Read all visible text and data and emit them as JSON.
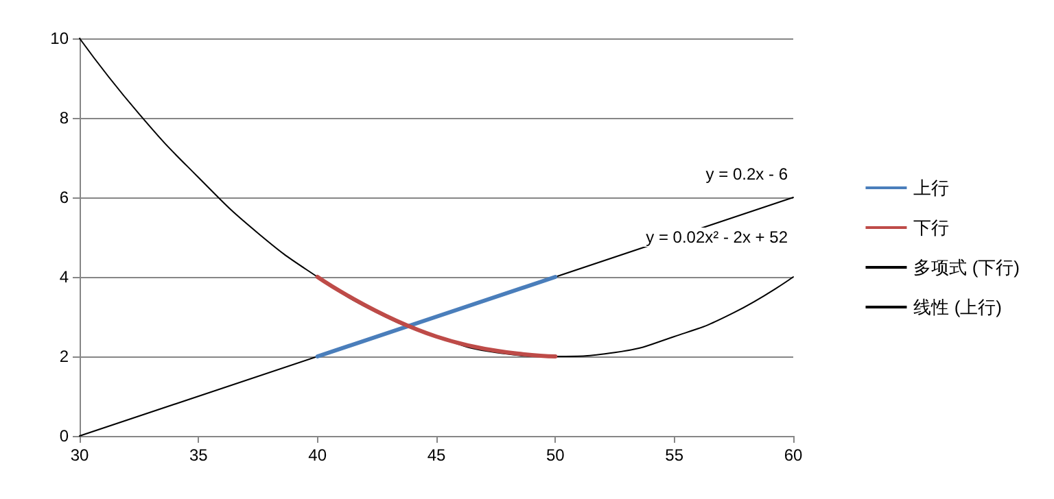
{
  "chart_data": {
    "type": "line",
    "xlim": [
      30,
      60
    ],
    "xticks": [
      30,
      35,
      40,
      45,
      50,
      55,
      60
    ],
    "ylim": [
      0,
      10
    ],
    "yticks": [
      0,
      2,
      4,
      6,
      8,
      10
    ],
    "grid": "y",
    "legend": "right",
    "marker": "none",
    "line_style": "solid",
    "series": [
      {
        "name": "上行",
        "color": "#4a7ebb",
        "x": [
          40,
          45,
          50
        ],
        "values": [
          2,
          3,
          4
        ]
      },
      {
        "name": "下行",
        "color": "#be4b48",
        "x": [
          40,
          45,
          50
        ],
        "values": [
          4,
          2.5,
          2
        ]
      },
      {
        "name": "多项式 (下行)",
        "color": "#000000",
        "x": [
          30,
          32.5,
          35,
          37.5,
          40,
          42.5,
          45,
          47.5,
          50,
          52.5,
          55,
          57.5,
          60
        ],
        "values": [
          10,
          8.1,
          6.5,
          5.1,
          4,
          3.1,
          2.5,
          2.1,
          2,
          2.1,
          2.5,
          3.1,
          4
        ]
      },
      {
        "name": "线性 (上行)",
        "color": "#000000",
        "x": [
          30,
          60
        ],
        "values": [
          0,
          6
        ]
      }
    ],
    "annotations": [
      "y = 0.2x - 6",
      "y = 0.02x² - 2x + 52"
    ]
  }
}
